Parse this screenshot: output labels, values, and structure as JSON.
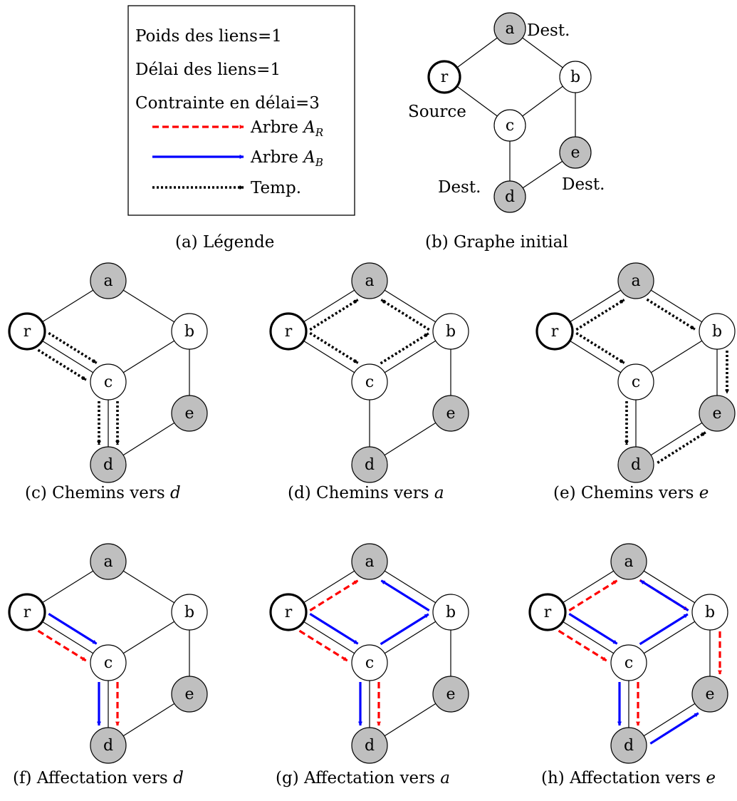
{
  "legend": {
    "lines": [
      "Poids des liens=1",
      "Délai des liens=1",
      "Contrainte en délai=3"
    ],
    "items": [
      {
        "style": "red-dashed",
        "text": "Arbre ",
        "sub_base": "A",
        "sub": "R"
      },
      {
        "style": "blue-solid",
        "text": "Arbre ",
        "sub_base": "A",
        "sub": "B"
      },
      {
        "style": "black-dotted",
        "text": "Temp."
      }
    ]
  },
  "colors": {
    "red": "#ff0000",
    "blue": "#0000ff",
    "black": "#000000",
    "gray_node": "#bfbfbf",
    "white_node": "#ffffff"
  },
  "graph_b": {
    "nodes": [
      "a",
      "b",
      "c",
      "d",
      "e",
      "r"
    ],
    "labels": {
      "dest_a": "Dest.",
      "dest_d": "Dest.",
      "dest_e": "Dest.",
      "source": "Source"
    }
  },
  "captions": {
    "a": {
      "prefix": "(a) Légende",
      "var": ""
    },
    "b": {
      "prefix": "(b) Graphe initial",
      "var": ""
    },
    "c": {
      "prefix": "(c) Chemins vers ",
      "var": "d"
    },
    "d": {
      "prefix": "(d) Chemins vers ",
      "var": "a"
    },
    "e": {
      "prefix": "(e) Chemins vers ",
      "var": "e"
    },
    "f": {
      "prefix": "(f) Affectation vers ",
      "var": "d"
    },
    "g": {
      "prefix": "(g) Affectation vers ",
      "var": "a"
    },
    "h": {
      "prefix": "(h) Affectation vers ",
      "var": "e"
    }
  }
}
